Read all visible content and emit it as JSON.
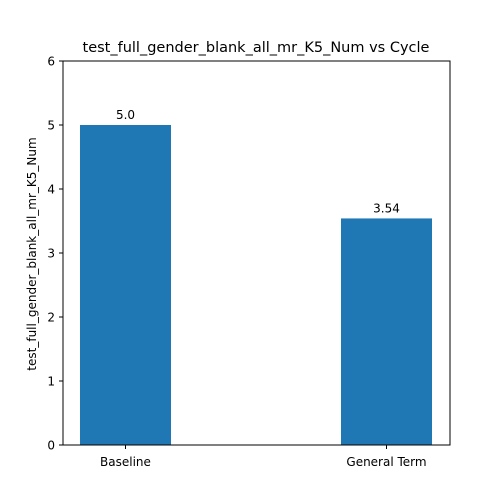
{
  "chart_data": {
    "type": "bar",
    "title": "test_full_gender_blank_all_mr_K5_Num vs Cycle",
    "xlabel": "",
    "ylabel": "test_full_gender_blank_all_mr_K5_Num",
    "categories": [
      "Baseline",
      "General Term"
    ],
    "values": [
      5.0,
      3.54
    ],
    "value_labels": [
      "5.0",
      "3.54"
    ],
    "ylim": [
      0,
      6
    ],
    "yticks": [
      0,
      1,
      2,
      3,
      4,
      5,
      6
    ],
    "ytick_labels": [
      "0",
      "1",
      "2",
      "3",
      "4",
      "5",
      "6"
    ],
    "bar_color": "#1f77b4",
    "grid": false,
    "legend": "none"
  }
}
